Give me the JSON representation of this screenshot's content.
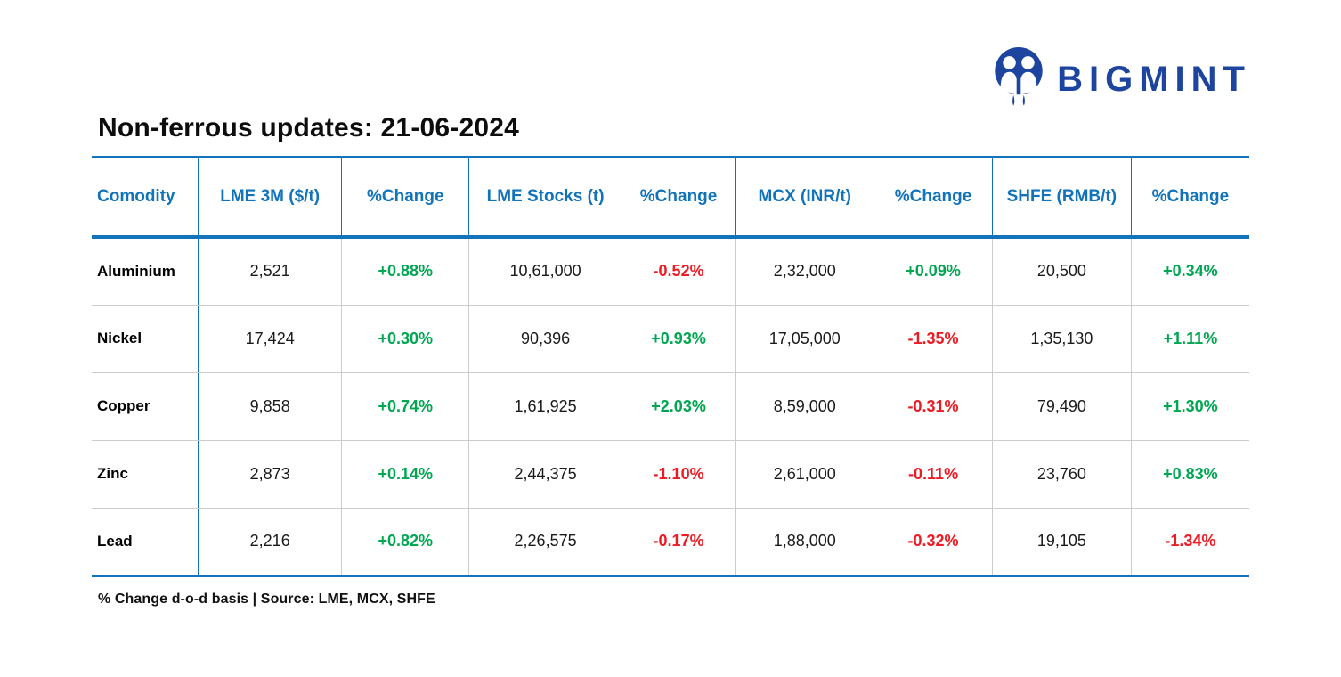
{
  "brand": {
    "logo_text": "BIGMINT",
    "logo_icon": "bigmint-people-icon",
    "logo_color": "#1d449f"
  },
  "title": "Non-ferrous updates: 21-06-2024",
  "footer_note": "% Change d-o-d basis | Source: LME, MCX, SHFE",
  "colors": {
    "header_blue": "#1173ba",
    "positive_green": "#00a651",
    "negative_red": "#ed1c24",
    "grid_gray": "#cccccc"
  },
  "chart_data": {
    "type": "table",
    "title": "Non-ferrous updates: 21-06-2024",
    "columns": [
      "Comodity",
      "LME 3M ($/t)",
      "%Change",
      "LME Stocks (t)",
      "%Change",
      "MCX (INR/t)",
      "%Change",
      "SHFE (RMB/t)",
      "%Change"
    ],
    "rows": [
      [
        "Aluminium",
        "2,521",
        "+0.88%",
        "10,61,000",
        "-0.52%",
        "2,32,000",
        "+0.09%",
        "20,500",
        "+0.34%"
      ],
      [
        "Nickel",
        "17,424",
        "+0.30%",
        "90,396",
        "+0.93%",
        "17,05,000",
        "-1.35%",
        "1,35,130",
        "+1.11%"
      ],
      [
        "Copper",
        "9,858",
        "+0.74%",
        "1,61,925",
        "+2.03%",
        "8,59,000",
        "-0.31%",
        "79,490",
        "+1.30%"
      ],
      [
        "Zinc",
        "2,873",
        "+0.14%",
        "2,44,375",
        "-1.10%",
        "2,61,000",
        "-0.11%",
        "23,760",
        "+0.83%"
      ],
      [
        "Lead",
        "2,216",
        "+0.82%",
        "2,26,575",
        "-0.17%",
        "1,88,000",
        "-0.32%",
        "19,105",
        "-1.34%"
      ]
    ],
    "source_note": "% Change d-o-d basis | Source: LME, MCX, SHFE"
  }
}
